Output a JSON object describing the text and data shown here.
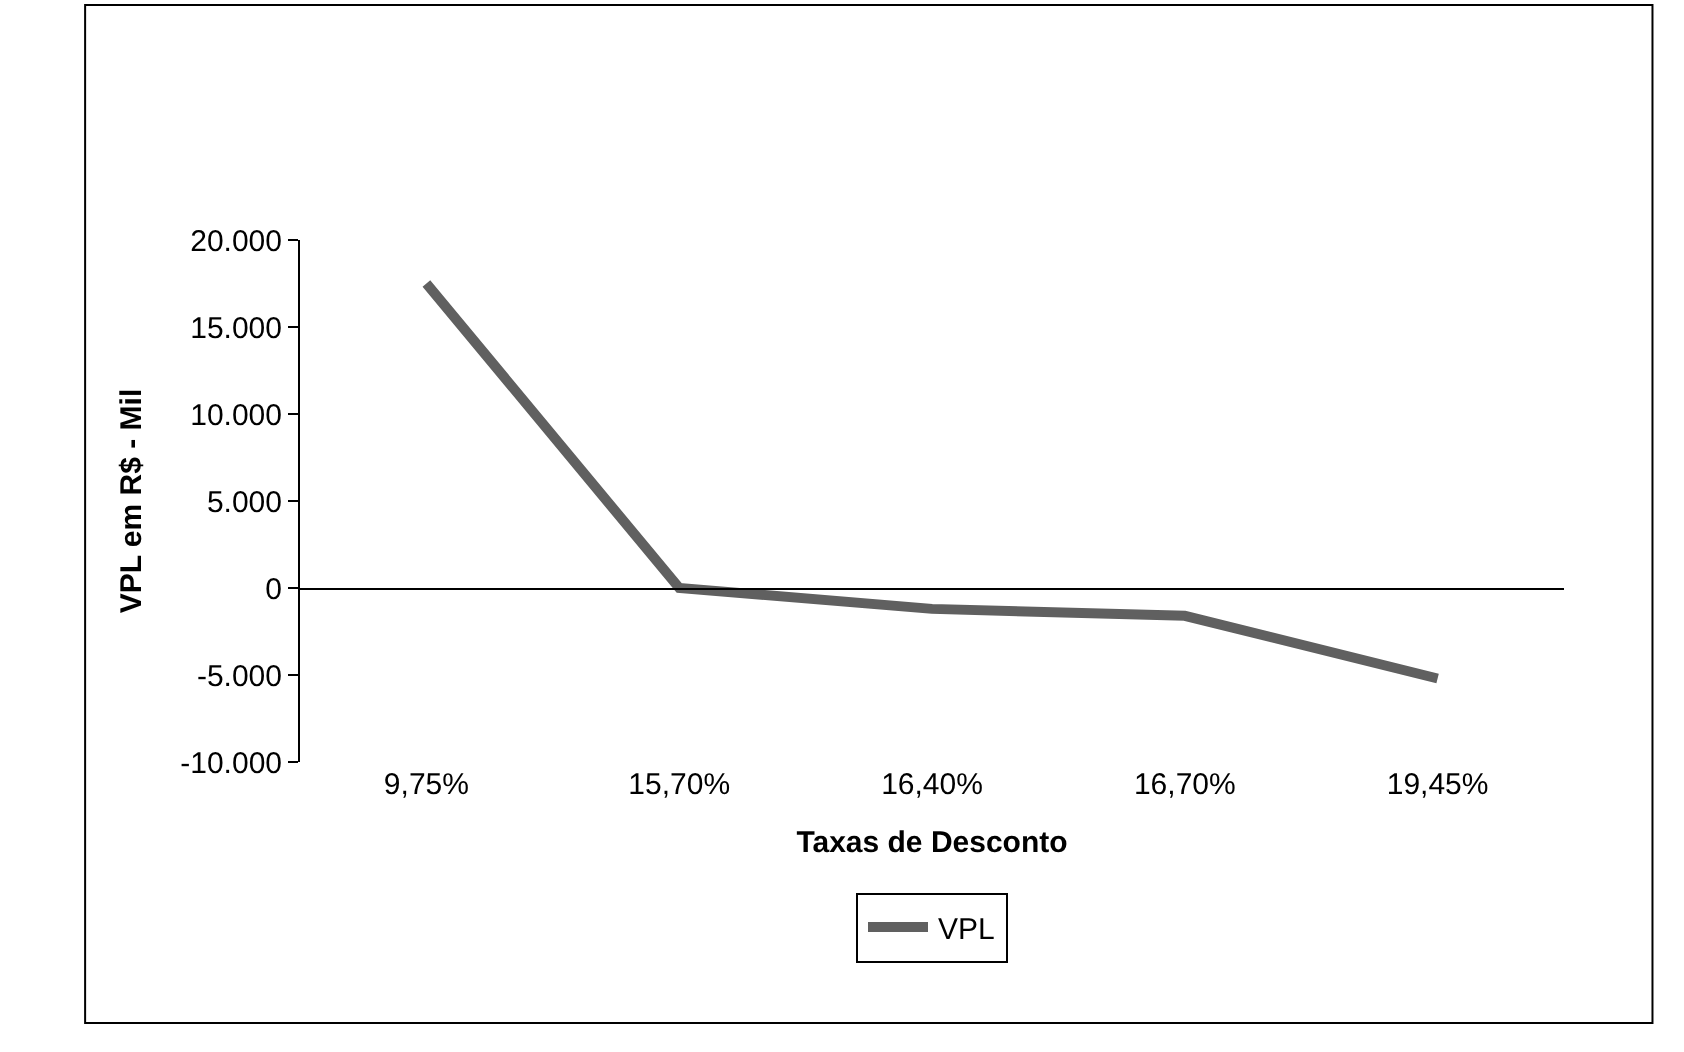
{
  "chart_data": {
    "type": "line",
    "xlabel": "Taxas de Desconto",
    "ylabel": "VPL em R$ - Mil",
    "categories": [
      "9,75%",
      "15,70%",
      "16,40%",
      "16,70%",
      "19,45%"
    ],
    "series": [
      {
        "name": "VPL",
        "color": "#606060",
        "values": [
          17500,
          0,
          -1200,
          -1600,
          -5200
        ]
      }
    ],
    "ylim": [
      -10000,
      20000
    ],
    "yticks": [
      {
        "value": -10000,
        "label": "-10.000"
      },
      {
        "value": -5000,
        "label": "-5.000"
      },
      {
        "value": 0,
        "label": "0"
      },
      {
        "value": 5000,
        "label": "5.000"
      },
      {
        "value": 10000,
        "label": "10.000"
      },
      {
        "value": 15000,
        "label": "15.000"
      },
      {
        "value": 20000,
        "label": "20.000"
      }
    ],
    "legend": "bottom",
    "marker": "none",
    "line_style": "solid"
  }
}
